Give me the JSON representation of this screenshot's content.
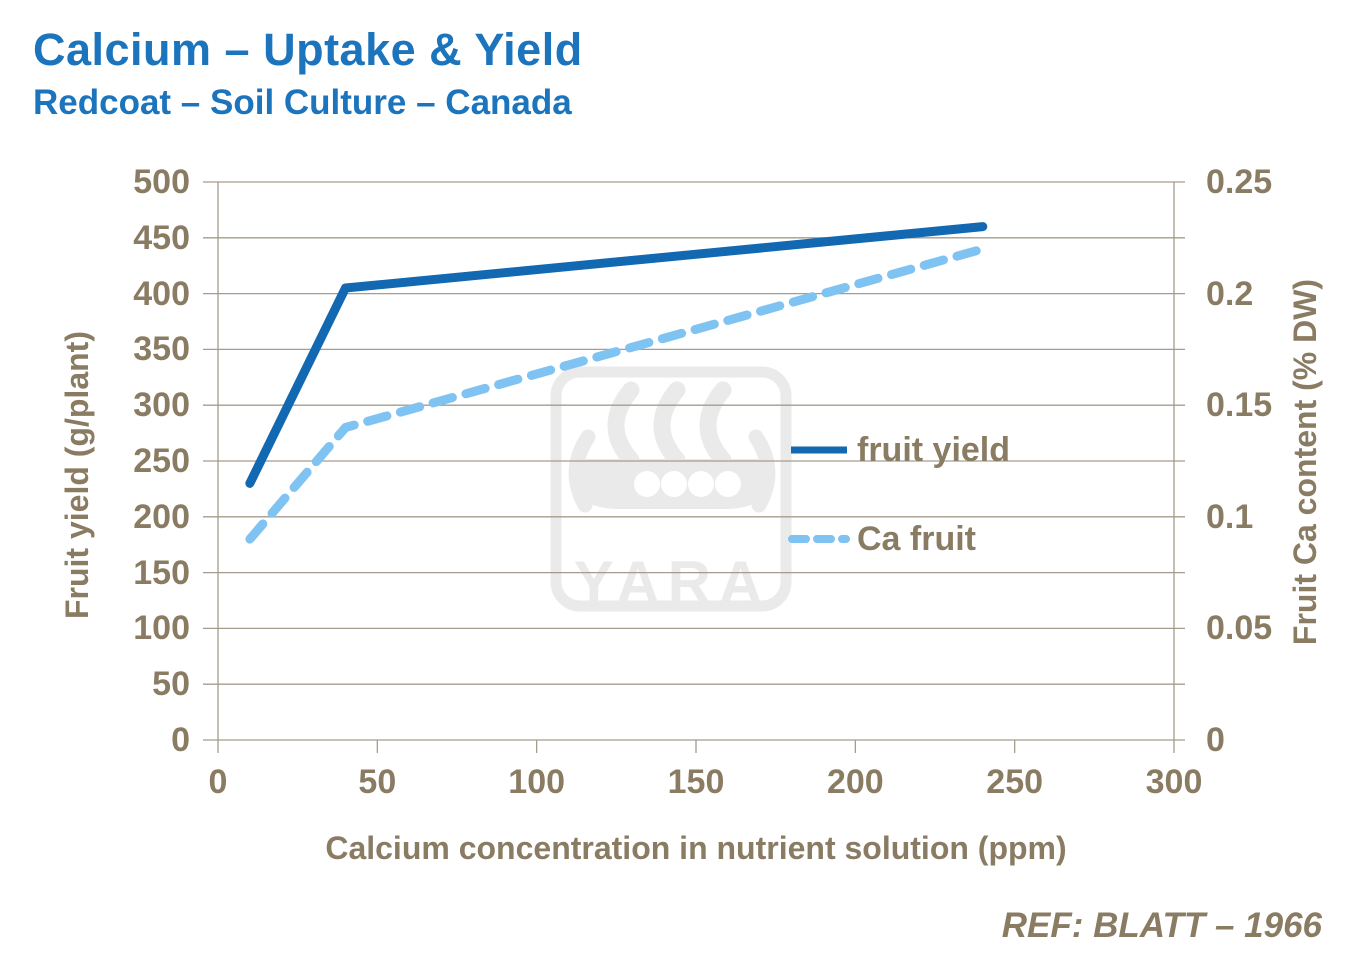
{
  "page": {
    "title": "Calcium – Uptake & Yield",
    "subtitle": "Redcoat – Soil Culture – Canada",
    "reference": "REF: BLATT – 1966"
  },
  "watermark": {
    "name": "yara-logo",
    "text": "YARA"
  },
  "colors": {
    "title_blue": "#1B74BC",
    "fruit_yield_line": "#1268B1",
    "ca_fruit_line": "#7FC3F2",
    "axis_text_brown": "#8A7B63",
    "gridline": "#A69C8C",
    "watermark_gray": "#EAEAEA"
  },
  "chart_data": {
    "type": "line",
    "title": "Calcium – Uptake & Yield",
    "subtitle": "Redcoat – Soil Culture – Canada",
    "xlabel": "Calcium concentration in nutrient solution (ppm)",
    "ylabel_left": "Fruit yield (g/plant)",
    "ylabel_right": "Fruit Ca content (% DW)",
    "xlim": [
      0,
      300
    ],
    "ylim_left": [
      0,
      500
    ],
    "ylim_right": [
      0,
      0.25
    ],
    "grid": "horizontal",
    "legend_position": "center-right",
    "x_tick_values": [
      0,
      50,
      100,
      150,
      200,
      250,
      300
    ],
    "x_tick_labels": [
      "0",
      "50",
      "100",
      "150",
      "200",
      "250",
      "300"
    ],
    "y_tick_values_left": [
      0,
      50,
      100,
      150,
      200,
      250,
      300,
      350,
      400,
      450,
      500
    ],
    "y_tick_labels_left": [
      "0",
      "50",
      "100",
      "150",
      "200",
      "250",
      "300",
      "350",
      "400",
      "450",
      "500"
    ],
    "y_tick_values_right": [
      0,
      0.05,
      0.1,
      0.15,
      0.2,
      0.25
    ],
    "y_tick_labels_right": [
      "0",
      "0.05",
      "0.1",
      "0.15",
      "0.2",
      "0.25"
    ],
    "series": [
      {
        "name": "fruit yield",
        "axis": "left",
        "style": "solid",
        "color": "#1268B1",
        "x": [
          10,
          40,
          240
        ],
        "y": [
          230,
          405,
          460
        ]
      },
      {
        "name": "Ca fruit",
        "axis": "right",
        "style": "dashed",
        "color": "#7FC3F2",
        "x": [
          10,
          40,
          240
        ],
        "y": [
          0.09,
          0.14,
          0.22
        ]
      }
    ]
  }
}
